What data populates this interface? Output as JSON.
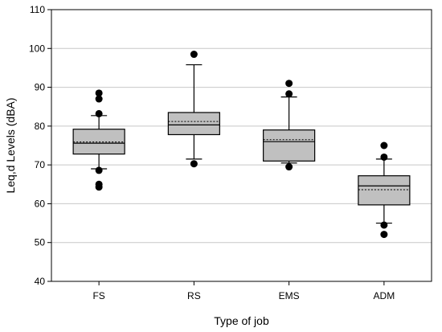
{
  "chart_data": {
    "type": "box",
    "xlabel": "Type of job",
    "ylabel": "Leq,d Levels (dBA)",
    "ylim": [
      40,
      110
    ],
    "yticks": [
      40,
      50,
      60,
      70,
      80,
      90,
      100,
      110
    ],
    "grid": true,
    "categories": [
      "FS",
      "RS",
      "EMS",
      "ADM"
    ],
    "boxes": [
      {
        "category": "FS",
        "whisker_low": 69,
        "q1": 72.8,
        "median": 75.6,
        "mean": 75.9,
        "q3": 79.2,
        "whisker_high": 82.7,
        "outliers": [
          64.3,
          65.0,
          68.6,
          83.2,
          87.0,
          88.5
        ]
      },
      {
        "category": "RS",
        "whisker_low": 71.5,
        "q1": 77.8,
        "median": 80.3,
        "mean": 81.2,
        "q3": 83.5,
        "whisker_high": 95.8,
        "outliers": [
          70.3,
          98.5
        ]
      },
      {
        "category": "EMS",
        "whisker_low": 70.5,
        "q1": 71.0,
        "median": 76.0,
        "mean": 76.5,
        "q3": 79.0,
        "whisker_high": 87.5,
        "outliers": [
          69.5,
          88.3,
          91.0
        ]
      },
      {
        "category": "ADM",
        "whisker_low": 55.0,
        "q1": 59.7,
        "median": 64.6,
        "mean": 63.6,
        "q3": 67.2,
        "whisker_high": 71.5,
        "outliers": [
          52.1,
          54.5,
          72.0,
          75.0
        ]
      }
    ],
    "colors": {
      "box_fill": "#c0c0c0",
      "stroke": "#000000",
      "grid": "#c8c8c8"
    }
  }
}
